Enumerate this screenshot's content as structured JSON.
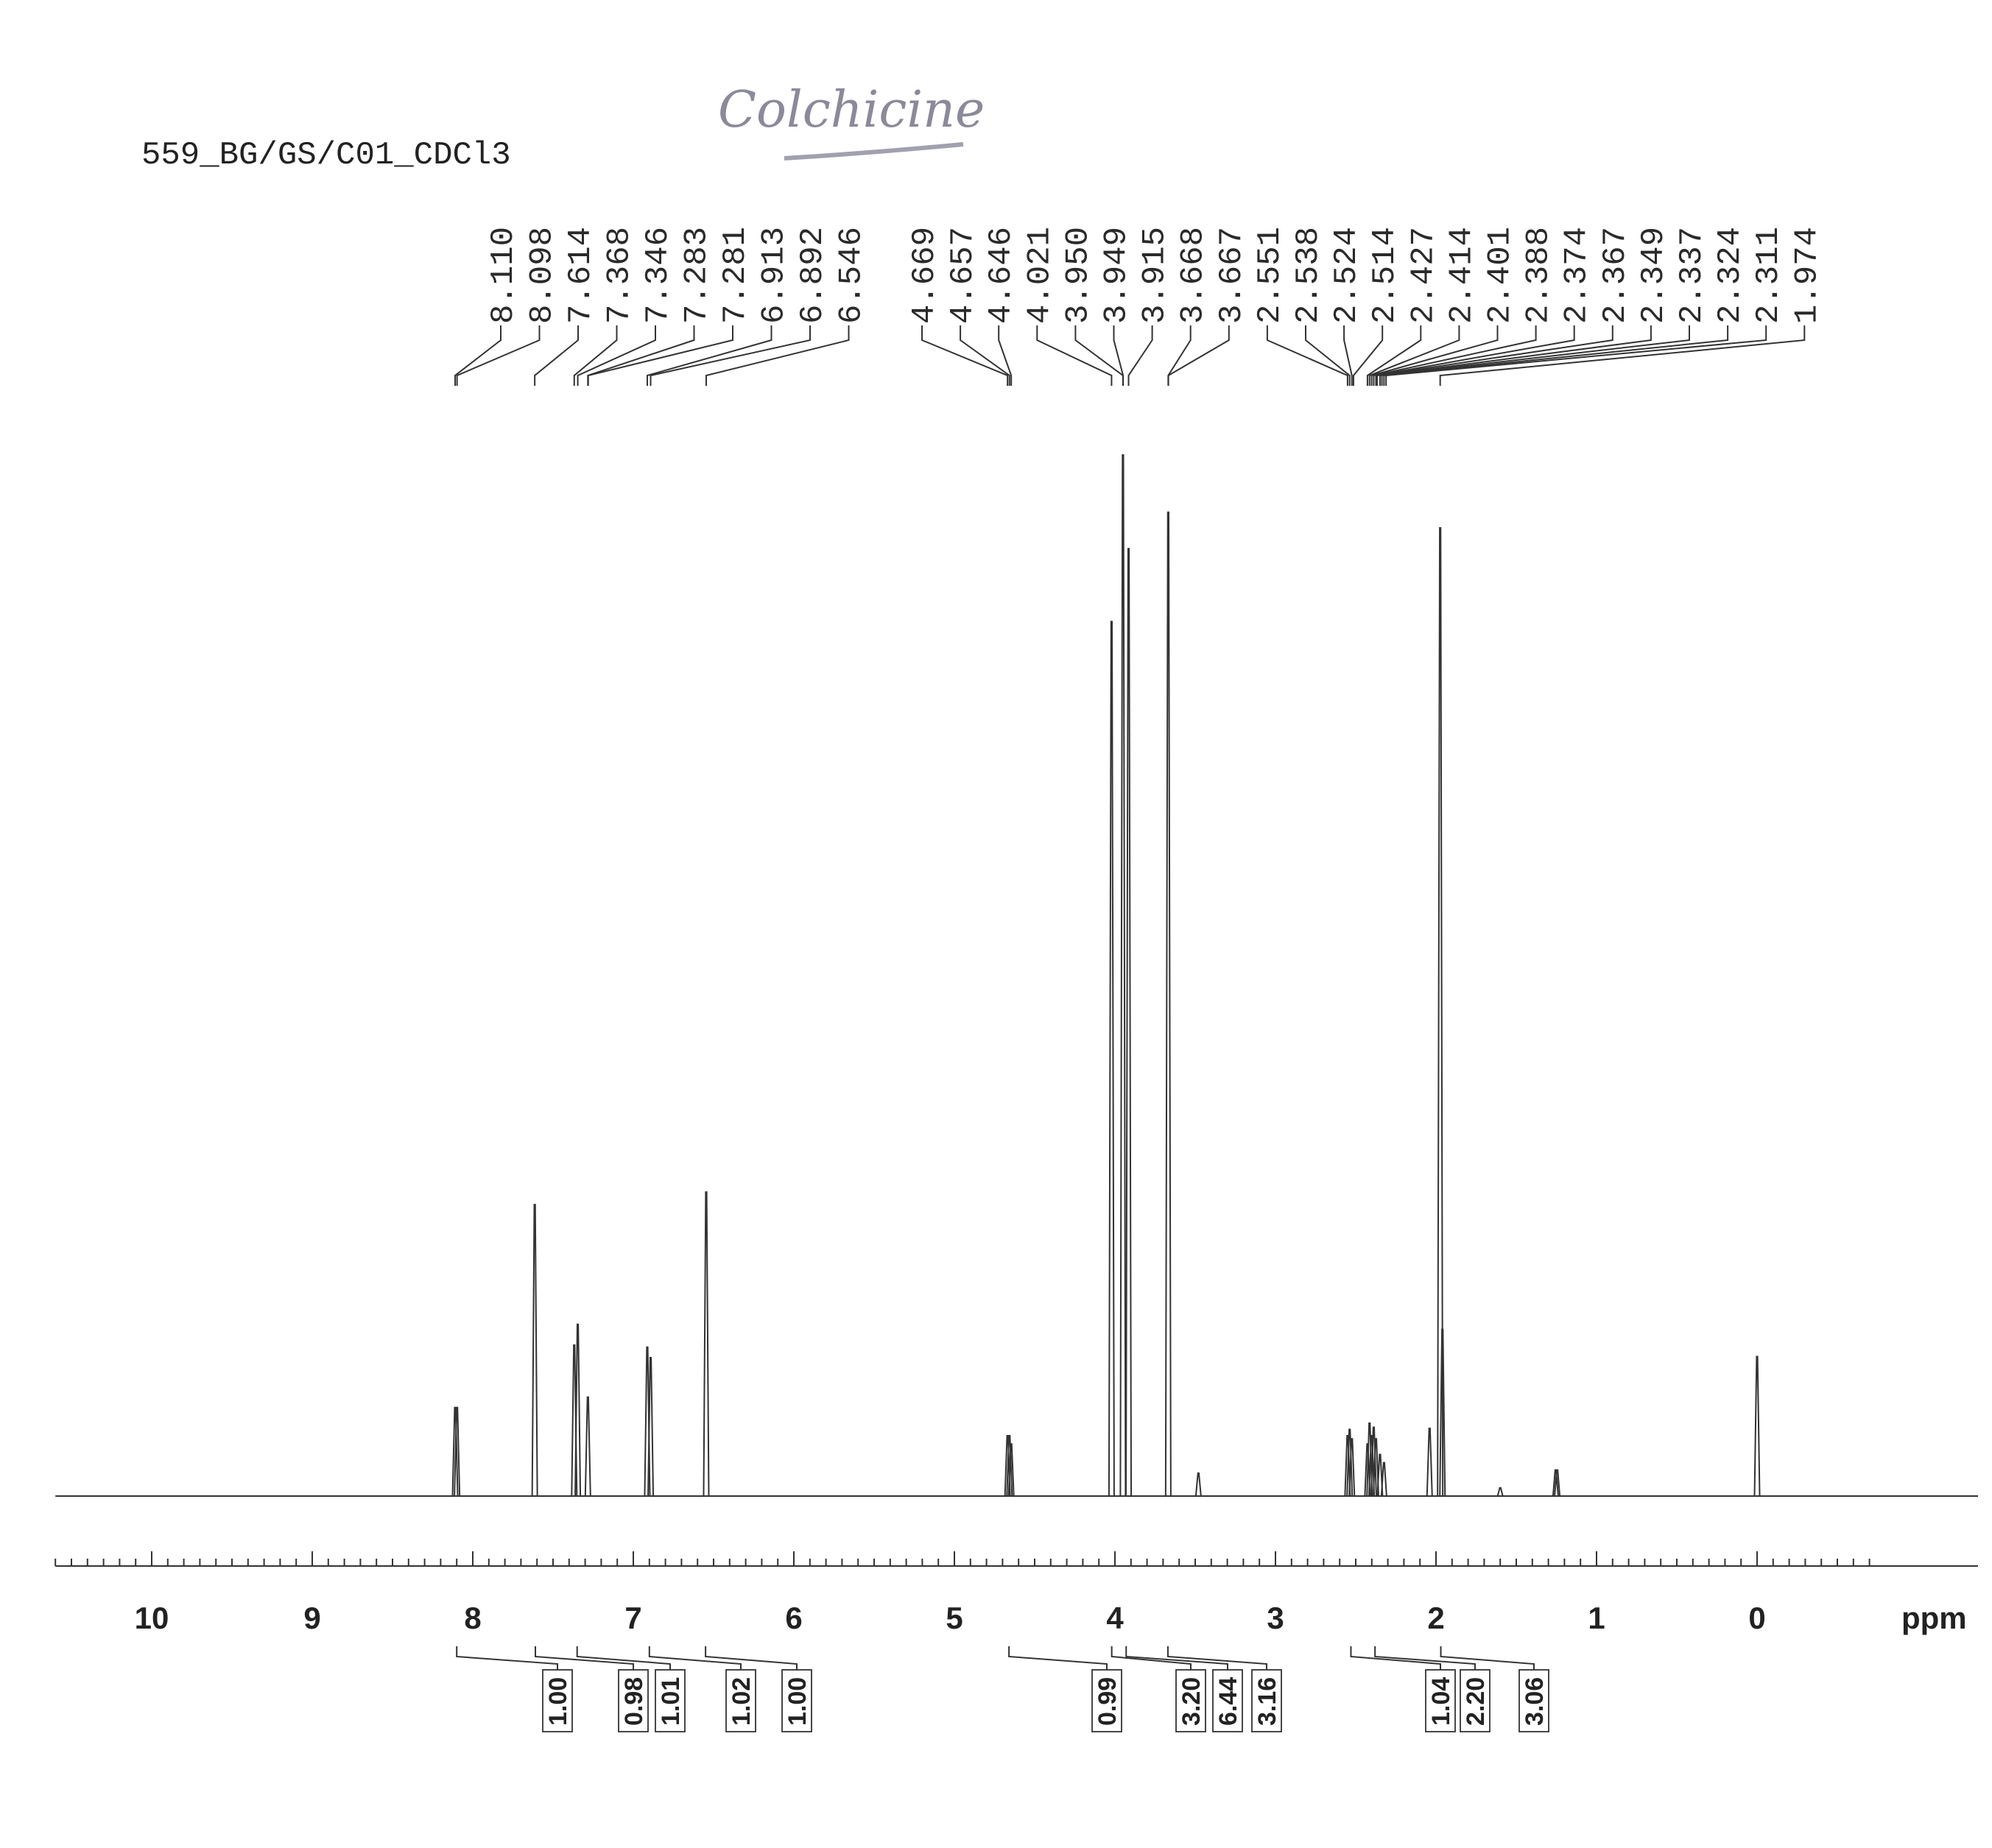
{
  "header": {
    "sample_id": "559_BG/GS/C01_CDCl3",
    "handwritten_note": "Colchicine"
  },
  "chart_data": {
    "type": "line",
    "title": "",
    "xlabel": "ppm",
    "ylabel": "",
    "xlim": [
      10.6,
      -0.8
    ],
    "x_reversed": true,
    "grid": false,
    "ticks": [
      "10",
      "9",
      "8",
      "7",
      "6",
      "5",
      "4",
      "3",
      "2",
      "1",
      "0"
    ],
    "peak_labels": [
      "8.110",
      "8.098",
      "7.614",
      "7.368",
      "7.346",
      "7.283",
      "7.281",
      "6.913",
      "6.892",
      "6.546",
      "4.669",
      "4.657",
      "4.646",
      "4.021",
      "3.950",
      "3.949",
      "3.915",
      "3.668",
      "3.667",
      "2.551",
      "2.538",
      "2.524",
      "2.514",
      "2.427",
      "2.414",
      "2.401",
      "2.388",
      "2.374",
      "2.367",
      "2.349",
      "2.337",
      "2.324",
      "2.311",
      "1.974"
    ],
    "peaks": [
      {
        "ppm": 8.11,
        "height": 0.085
      },
      {
        "ppm": 8.098,
        "height": 0.085
      },
      {
        "ppm": 7.614,
        "height": 0.28
      },
      {
        "ppm": 7.368,
        "height": 0.145
      },
      {
        "ppm": 7.346,
        "height": 0.165
      },
      {
        "ppm": 7.283,
        "height": 0.095
      },
      {
        "ppm": 6.913,
        "height": 0.143
      },
      {
        "ppm": 6.892,
        "height": 0.133
      },
      {
        "ppm": 6.546,
        "height": 0.292
      },
      {
        "ppm": 4.669,
        "height": 0.058
      },
      {
        "ppm": 4.657,
        "height": 0.058
      },
      {
        "ppm": 4.646,
        "height": 0.05
      },
      {
        "ppm": 4.021,
        "height": 0.84
      },
      {
        "ppm": 3.95,
        "height": 1.0
      },
      {
        "ppm": 3.915,
        "height": 0.91
      },
      {
        "ppm": 3.668,
        "height": 0.945
      },
      {
        "ppm": 3.48,
        "height": 0.022
      },
      {
        "ppm": 2.551,
        "height": 0.058
      },
      {
        "ppm": 2.538,
        "height": 0.064
      },
      {
        "ppm": 2.524,
        "height": 0.055
      },
      {
        "ppm": 2.427,
        "height": 0.05
      },
      {
        "ppm": 2.414,
        "height": 0.07
      },
      {
        "ppm": 2.401,
        "height": 0.058
      },
      {
        "ppm": 2.388,
        "height": 0.066
      },
      {
        "ppm": 2.374,
        "height": 0.055
      },
      {
        "ppm": 2.349,
        "height": 0.04
      },
      {
        "ppm": 2.324,
        "height": 0.032
      },
      {
        "ppm": 2.04,
        "height": 0.065
      },
      {
        "ppm": 1.974,
        "height": 0.93
      },
      {
        "ppm": 1.96,
        "height": 0.16
      },
      {
        "ppm": 1.6,
        "height": 0.008
      },
      {
        "ppm": 1.255,
        "height": 0.025
      },
      {
        "ppm": 1.245,
        "height": 0.025
      },
      {
        "ppm": 0.0,
        "height": 0.134
      }
    ],
    "integrals": [
      {
        "value": "1.00",
        "ppm": 8.1
      },
      {
        "value": "0.98",
        "ppm": 7.61
      },
      {
        "value": "1.01",
        "ppm": 7.35
      },
      {
        "value": "1.02",
        "ppm": 6.9
      },
      {
        "value": "1.00",
        "ppm": 6.55
      },
      {
        "value": "0.99",
        "ppm": 4.66
      },
      {
        "value": "3.20",
        "ppm": 4.02
      },
      {
        "value": "6.44",
        "ppm": 3.93
      },
      {
        "value": "3.16",
        "ppm": 3.67
      },
      {
        "value": "1.04",
        "ppm": 2.53
      },
      {
        "value": "2.20",
        "ppm": 2.38
      },
      {
        "value": "3.06",
        "ppm": 1.97
      }
    ]
  }
}
